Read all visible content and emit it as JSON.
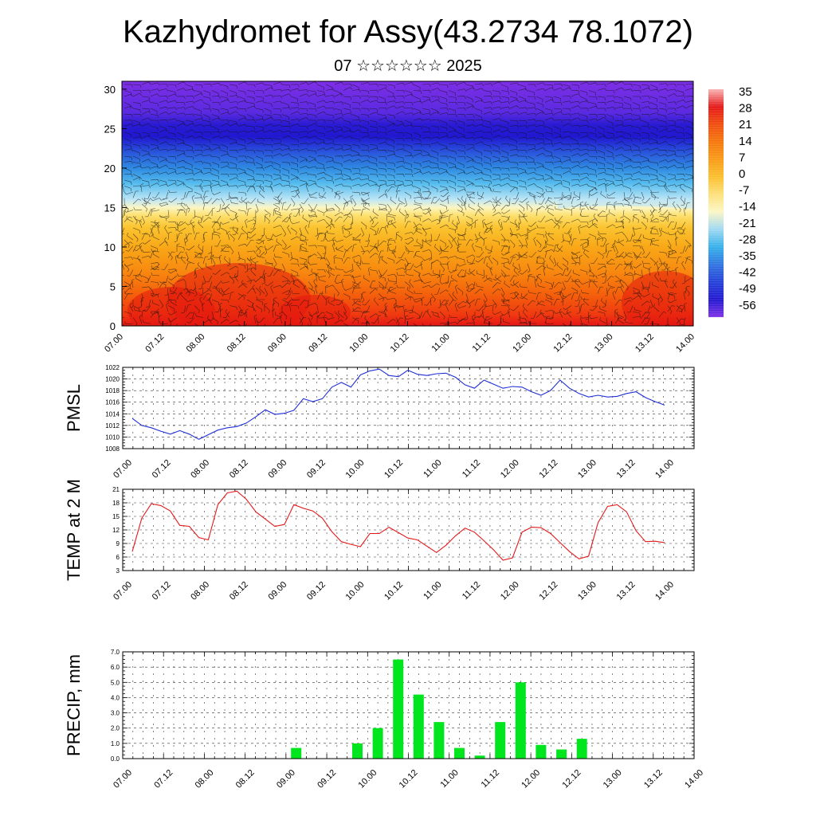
{
  "title": "Kazhydromet for Assy(43.2734 78.1072)",
  "subtitle": "07 ☆☆☆☆☆☆ 2025",
  "time_labels": [
    "07.00",
    "07.12",
    "08.00",
    "08.12",
    "09.00",
    "09.12",
    "10.00",
    "10.12",
    "11.00",
    "11.12",
    "12.00",
    "12.12",
    "13.00",
    "13.12",
    "14.00"
  ],
  "colorbar": {
    "labels": [
      "35",
      "28",
      "21",
      "14",
      "7",
      "0",
      "-7",
      "-14",
      "-21",
      "-28",
      "-35",
      "-42",
      "-49",
      "-56"
    ]
  },
  "chart_data": [
    {
      "type": "heatmap",
      "name": "vertical temperature cross-section with wind barbs",
      "x_ticks": [
        "07.00",
        "07.12",
        "08.00",
        "08.12",
        "09.00",
        "09.12",
        "10.00",
        "10.12",
        "11.00",
        "11.12",
        "12.00",
        "12.12",
        "13.00",
        "13.12",
        "14.00"
      ],
      "y_ticks": [
        0,
        5,
        10,
        15,
        20,
        25,
        30
      ],
      "ylim": [
        0,
        31
      ],
      "colorscale": {
        "values": [
          35,
          28,
          21,
          14,
          7,
          0,
          -7,
          -14,
          -21,
          -28,
          -35,
          -42,
          -49,
          -56
        ],
        "colors": [
          "#f9b4b4",
          "#e51616",
          "#f04c0c",
          "#f5760a",
          "#f99a14",
          "#fbbf2c",
          "#fde07a",
          "#fbf6c6",
          "#9ed8f2",
          "#33b0ea",
          "#2f74e0",
          "#233fd8",
          "#2016d0",
          "#7e2fe6"
        ]
      }
    },
    {
      "type": "line",
      "ylabel": "PMSL",
      "ylim": [
        1008,
        1022
      ],
      "yticks": [
        1008,
        1010,
        1012,
        1014,
        1016,
        1018,
        1020,
        1022
      ],
      "x_start": 0.25,
      "x_step": 0.25,
      "series": [
        {
          "color": "#1f2fd6",
          "values": [
            1013.2,
            1012.0,
            1011.6,
            1011.0,
            1010.5,
            1011.1,
            1010.5,
            1009.6,
            1010.4,
            1011.2,
            1011.6,
            1011.8,
            1012.4,
            1013.5,
            1014.7,
            1013.9,
            1014.1,
            1014.6,
            1016.6,
            1016.1,
            1016.6,
            1018.6,
            1019.4,
            1018.6,
            1020.7,
            1021.4,
            1021.7,
            1020.6,
            1020.4,
            1021.5,
            1020.8,
            1020.6,
            1020.9,
            1021.0,
            1020.3,
            1019.0,
            1018.4,
            1019.8,
            1019.1,
            1018.4,
            1018.7,
            1018.6,
            1017.8,
            1017.2,
            1018.0,
            1019.8,
            1018.4,
            1017.5,
            1016.9,
            1017.2,
            1016.9,
            1017.0,
            1017.5,
            1017.8,
            1016.8,
            1016.1,
            1015.5
          ]
        }
      ]
    },
    {
      "type": "line",
      "ylabel": "TEMP at 2 M",
      "ylim": [
        3,
        21
      ],
      "yticks": [
        3,
        6,
        9,
        12,
        15,
        18,
        21
      ],
      "x_start": 0.25,
      "x_step": 0.25,
      "series": [
        {
          "color": "#e31a1c",
          "values": [
            7.2,
            14.6,
            17.8,
            17.4,
            16.2,
            13.0,
            12.8,
            10.3,
            9.8,
            17.6,
            20.2,
            20.6,
            18.8,
            16.0,
            14.4,
            12.8,
            13.2,
            17.6,
            16.8,
            16.2,
            14.6,
            11.6,
            9.4,
            8.8,
            8.3,
            11.2,
            11.2,
            12.6,
            11.4,
            10.2,
            9.8,
            8.4,
            7.0,
            8.6,
            10.7,
            12.4,
            11.5,
            9.6,
            7.6,
            5.3,
            5.8,
            11.5,
            12.6,
            12.5,
            11.2,
            9.2,
            7.2,
            5.6,
            6.2,
            13.6,
            17.2,
            17.6,
            16.0,
            11.8,
            9.4,
            9.5,
            9.2
          ]
        }
      ]
    },
    {
      "type": "bar",
      "ylabel": "PRECIP, mm",
      "ylim": [
        0,
        7
      ],
      "yticks": [
        "0.0",
        "1.0",
        "2.0",
        "3.0",
        "4.0",
        "5.0",
        "6.0",
        "7.0"
      ],
      "color": "#00e61e",
      "bins": [
        {
          "t": 9.0,
          "value": 0.7
        },
        {
          "t": 9.75,
          "value": 1.0
        },
        {
          "t": 10.0,
          "value": 2.0
        },
        {
          "t": 10.25,
          "value": 6.5
        },
        {
          "t": 10.5,
          "value": 4.2
        },
        {
          "t": 10.75,
          "value": 2.4
        },
        {
          "t": 11.0,
          "value": 0.7
        },
        {
          "t": 11.25,
          "value": 0.2
        },
        {
          "t": 11.5,
          "value": 2.4
        },
        {
          "t": 11.75,
          "value": 5.0
        },
        {
          "t": 12.0,
          "value": 0.9
        },
        {
          "t": 12.25,
          "value": 0.6
        },
        {
          "t": 12.5,
          "value": 1.3
        }
      ]
    }
  ]
}
